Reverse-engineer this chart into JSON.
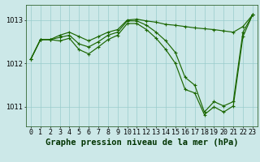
{
  "hours": [
    0,
    1,
    2,
    3,
    4,
    5,
    6,
    7,
    8,
    9,
    10,
    11,
    12,
    13,
    14,
    15,
    16,
    17,
    18,
    19,
    20,
    21,
    22,
    23
  ],
  "line_high": [
    1012.1,
    1012.55,
    1012.55,
    1012.65,
    1012.72,
    1012.62,
    1012.52,
    1012.62,
    1012.72,
    1012.78,
    1013.0,
    1013.02,
    1012.98,
    1012.95,
    1012.9,
    1012.88,
    1012.85,
    1012.82,
    1012.8,
    1012.78,
    1012.75,
    1012.72,
    1012.85,
    1013.12
  ],
  "line_mid": [
    1012.1,
    1012.55,
    1012.55,
    1012.6,
    1012.65,
    1012.45,
    1012.38,
    1012.5,
    1012.65,
    1012.72,
    1012.98,
    1012.98,
    1012.88,
    1012.72,
    1012.52,
    1012.25,
    1011.68,
    1011.5,
    1010.88,
    1011.12,
    1011.02,
    1011.12,
    1012.72,
    1013.12
  ],
  "line_low": [
    1012.1,
    1012.55,
    1012.55,
    1012.52,
    1012.58,
    1012.32,
    1012.22,
    1012.38,
    1012.55,
    1012.65,
    1012.92,
    1012.92,
    1012.78,
    1012.58,
    1012.32,
    1012.0,
    1011.4,
    1011.32,
    1010.82,
    1011.0,
    1010.88,
    1011.02,
    1012.62,
    1013.12
  ],
  "line_color": "#1a6600",
  "bg_color": "#cce8e8",
  "grid_color": "#99cccc",
  "title": "Graphe pression niveau de la mer (hPa)",
  "ylim": [
    1010.55,
    1013.35
  ],
  "yticks": [
    1011.0,
    1012.0,
    1013.0
  ],
  "xlim": [
    -0.5,
    23.5
  ],
  "title_fontsize": 7.5,
  "tick_fontsize": 6.0
}
